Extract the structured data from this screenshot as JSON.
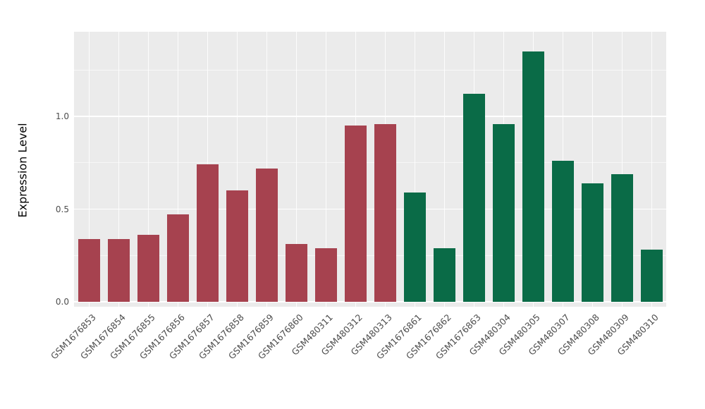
{
  "chart_data": {
    "type": "bar",
    "title": "",
    "xlabel": "",
    "ylabel": "Expression Level",
    "ylim": [
      0,
      1.45
    ],
    "yticks": [
      {
        "label": "0.0",
        "value": 0.0
      },
      {
        "label": "0.5",
        "value": 0.5
      },
      {
        "label": "1.0",
        "value": 1.0
      }
    ],
    "minor_tick_values": [
      0.25,
      0.75,
      1.25
    ],
    "grid": true,
    "legend_position": "none",
    "categories": [
      "GSM1676853",
      "GSM1676854",
      "GSM1676855",
      "GSM1676856",
      "GSM1676857",
      "GSM1676858",
      "GSM1676859",
      "GSM1676860",
      "GSM480311",
      "GSM480312",
      "GSM480313",
      "GSM1676861",
      "GSM1676862",
      "GSM1676863",
      "GSM480304",
      "GSM480305",
      "GSM480307",
      "GSM480308",
      "GSM480309",
      "GSM480310"
    ],
    "values": [
      0.34,
      0.34,
      0.36,
      0.47,
      0.74,
      0.6,
      0.72,
      0.31,
      0.29,
      0.95,
      0.96,
      0.59,
      0.29,
      1.12,
      0.96,
      1.35,
      0.76,
      0.64,
      0.69,
      0.28
    ],
    "groups": [
      "group1",
      "group1",
      "group1",
      "group1",
      "group1",
      "group1",
      "group1",
      "group1",
      "group1",
      "group1",
      "group1",
      "group2",
      "group2",
      "group2",
      "group2",
      "group2",
      "group2",
      "group2",
      "group2",
      "group2"
    ],
    "group_colors": {
      "group1": "#A6424F",
      "group2": "#0A6B47"
    },
    "panel_background": "#EBEBEB",
    "gridline_color": "#FFFFFF",
    "axis_text_color": "#4D4D4D"
  }
}
